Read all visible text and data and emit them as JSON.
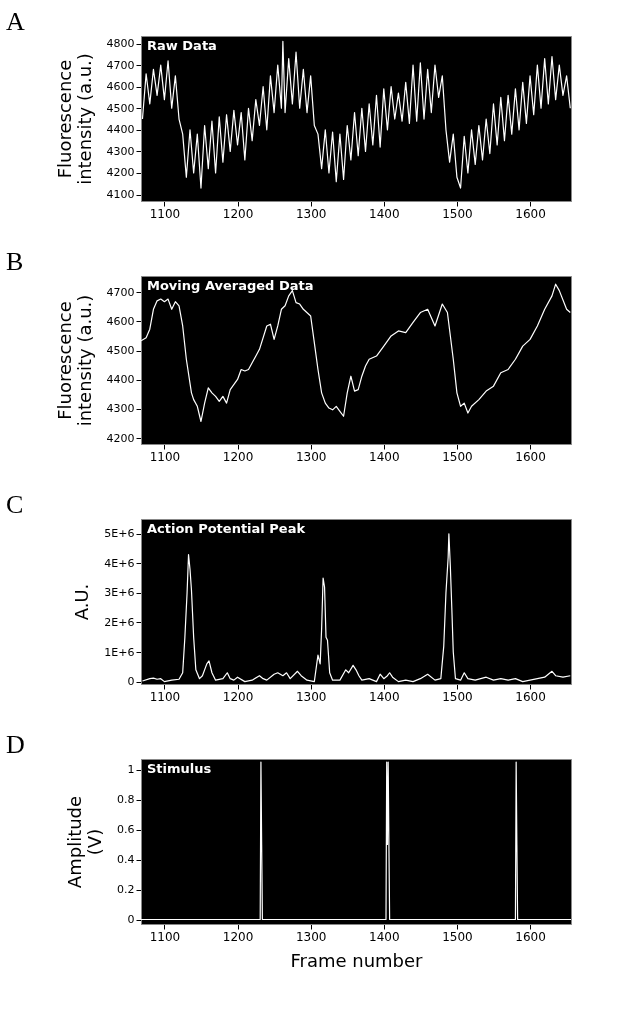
{
  "chart_data": [
    {
      "type": "line",
      "title": "Raw Data",
      "ylabel": "Fluorescence intensity (a.u.)",
      "annotations": [
        "A"
      ],
      "xlim": [
        1068,
        1656
      ],
      "xticks": [
        1100,
        1200,
        1300,
        1400,
        1500,
        1600
      ],
      "ylim": [
        4070,
        4835
      ],
      "yticks": [
        4100,
        4200,
        4300,
        4400,
        4500,
        4600,
        4700,
        4800
      ],
      "grid": false,
      "series": [
        {
          "color": "#ffffff",
          "x": [
            1070,
            1075,
            1080,
            1085,
            1090,
            1095,
            1100,
            1105,
            1110,
            1115,
            1120,
            1125,
            1130,
            1135,
            1140,
            1145,
            1150,
            1155,
            1160,
            1165,
            1170,
            1175,
            1180,
            1185,
            1190,
            1195,
            1200,
            1205,
            1210,
            1215,
            1220,
            1225,
            1230,
            1235,
            1240,
            1245,
            1250,
            1255,
            1260,
            1262,
            1265,
            1270,
            1275,
            1280,
            1285,
            1290,
            1295,
            1300,
            1305,
            1310,
            1315,
            1320,
            1325,
            1330,
            1335,
            1340,
            1345,
            1350,
            1355,
            1360,
            1365,
            1370,
            1375,
            1380,
            1385,
            1390,
            1395,
            1400,
            1405,
            1410,
            1415,
            1420,
            1425,
            1430,
            1435,
            1440,
            1445,
            1450,
            1455,
            1460,
            1465,
            1470,
            1475,
            1480,
            1485,
            1490,
            1495,
            1500,
            1505,
            1510,
            1515,
            1520,
            1525,
            1530,
            1535,
            1540,
            1545,
            1550,
            1555,
            1560,
            1565,
            1570,
            1575,
            1580,
            1585,
            1590,
            1595,
            1600,
            1605,
            1610,
            1615,
            1620,
            1625,
            1630,
            1635,
            1640,
            1645,
            1650,
            1655
          ],
          "values": [
            4450,
            4660,
            4520,
            4680,
            4560,
            4700,
            4540,
            4720,
            4500,
            4650,
            4450,
            4380,
            4180,
            4400,
            4200,
            4380,
            4130,
            4420,
            4220,
            4440,
            4200,
            4460,
            4250,
            4470,
            4300,
            4490,
            4330,
            4480,
            4260,
            4500,
            4350,
            4540,
            4420,
            4600,
            4400,
            4650,
            4480,
            4700,
            4500,
            4810,
            4480,
            4730,
            4520,
            4760,
            4500,
            4680,
            4480,
            4650,
            4420,
            4380,
            4220,
            4400,
            4200,
            4390,
            4160,
            4380,
            4170,
            4420,
            4260,
            4480,
            4280,
            4500,
            4300,
            4520,
            4330,
            4560,
            4320,
            4590,
            4400,
            4600,
            4450,
            4570,
            4440,
            4620,
            4430,
            4700,
            4440,
            4710,
            4450,
            4680,
            4480,
            4700,
            4550,
            4650,
            4400,
            4250,
            4380,
            4180,
            4130,
            4370,
            4200,
            4400,
            4240,
            4420,
            4260,
            4450,
            4290,
            4520,
            4330,
            4550,
            4350,
            4560,
            4380,
            4590,
            4400,
            4620,
            4430,
            4650,
            4470,
            4700,
            4500,
            4730,
            4520,
            4740,
            4540,
            4700,
            4560,
            4650,
            4500
          ]
        }
      ]
    },
    {
      "type": "line",
      "title": "Moving Averaged Data",
      "ylabel": "Fluorescence intensity (a.u.)",
      "annotations": [
        "B"
      ],
      "xlim": [
        1068,
        1656
      ],
      "xticks": [
        1100,
        1200,
        1300,
        1400,
        1500,
        1600
      ],
      "ylim": [
        4180,
        4755
      ],
      "yticks": [
        4200,
        4300,
        4400,
        4500,
        4600,
        4700
      ],
      "grid": false,
      "series": [
        {
          "color": "#ffffff",
          "x": [
            1068,
            1075,
            1080,
            1085,
            1090,
            1095,
            1100,
            1105,
            1110,
            1115,
            1120,
            1125,
            1130,
            1137,
            1140,
            1145,
            1150,
            1155,
            1160,
            1165,
            1170,
            1175,
            1180,
            1185,
            1190,
            1200,
            1205,
            1210,
            1215,
            1220,
            1230,
            1240,
            1245,
            1250,
            1255,
            1260,
            1265,
            1270,
            1275,
            1280,
            1285,
            1290,
            1300,
            1305,
            1310,
            1315,
            1320,
            1325,
            1330,
            1335,
            1340,
            1345,
            1350,
            1355,
            1360,
            1365,
            1370,
            1375,
            1380,
            1390,
            1400,
            1410,
            1420,
            1430,
            1440,
            1450,
            1460,
            1470,
            1480,
            1487,
            1495,
            1500,
            1505,
            1510,
            1515,
            1520,
            1530,
            1540,
            1550,
            1560,
            1570,
            1580,
            1590,
            1600,
            1610,
            1620,
            1630,
            1635,
            1640,
            1650,
            1655
          ],
          "values": [
            4533,
            4544,
            4573,
            4641,
            4670,
            4676,
            4667,
            4676,
            4641,
            4667,
            4653,
            4584,
            4470,
            4355,
            4332,
            4309,
            4257,
            4320,
            4372,
            4355,
            4343,
            4326,
            4343,
            4320,
            4366,
            4401,
            4435,
            4430,
            4435,
            4458,
            4504,
            4584,
            4590,
            4538,
            4584,
            4641,
            4653,
            4687,
            4705,
            4664,
            4659,
            4641,
            4618,
            4527,
            4435,
            4355,
            4320,
            4303,
            4297,
            4309,
            4292,
            4275,
            4355,
            4412,
            4361,
            4366,
            4412,
            4447,
            4470,
            4481,
            4515,
            4550,
            4567,
            4561,
            4596,
            4630,
            4641,
            4584,
            4659,
            4630,
            4470,
            4355,
            4309,
            4320,
            4286,
            4309,
            4332,
            4361,
            4378,
            4424,
            4435,
            4470,
            4515,
            4538,
            4584,
            4641,
            4687,
            4727,
            4705,
            4641,
            4630
          ]
        }
      ]
    },
    {
      "type": "line",
      "title": "Action Potential Peak",
      "ylabel": "A.U.",
      "annotations": [
        "C"
      ],
      "xlim": [
        1068,
        1656
      ],
      "xticks": [
        1100,
        1200,
        1300,
        1400,
        1500,
        1600
      ],
      "ylim": [
        -80000,
        5500000
      ],
      "yticks": [
        0,
        {
          "value": 1000000,
          "label": "1E+6"
        },
        {
          "value": 2000000,
          "label": "2E+6"
        },
        {
          "value": 3000000,
          "label": "3E+6"
        },
        {
          "value": 4000000,
          "label": "4E+6"
        },
        {
          "value": 5000000,
          "label": "5E+6"
        }
      ],
      "grid": false,
      "series": [
        {
          "color": "#ffffff",
          "x": [
            1070,
            1080,
            1085,
            1090,
            1095,
            1100,
            1110,
            1120,
            1125,
            1128,
            1131,
            1133,
            1135,
            1137,
            1140,
            1143,
            1148,
            1152,
            1158,
            1161,
            1165,
            1170,
            1180,
            1186,
            1190,
            1195,
            1200,
            1210,
            1220,
            1230,
            1235,
            1240,
            1250,
            1255,
            1262,
            1267,
            1272,
            1282,
            1287,
            1295,
            1305,
            1310,
            1313,
            1315,
            1317,
            1319,
            1321,
            1323,
            1326,
            1330,
            1340,
            1348,
            1352,
            1358,
            1362,
            1366,
            1370,
            1380,
            1390,
            1395,
            1400,
            1405,
            1408,
            1412,
            1420,
            1430,
            1440,
            1450,
            1460,
            1470,
            1478,
            1482,
            1485,
            1488,
            1489,
            1491,
            1493,
            1495,
            1498,
            1505,
            1510,
            1515,
            1525,
            1540,
            1550,
            1560,
            1570,
            1580,
            1590,
            1600,
            1610,
            1620,
            1630,
            1635,
            1645,
            1655
          ],
          "values": [
            20000,
            100000,
            120000,
            80000,
            100000,
            0,
            50000,
            80000,
            300000,
            1500000,
            3000000,
            4300000,
            3800000,
            3100000,
            1500000,
            400000,
            100000,
            200000,
            600000,
            700000,
            300000,
            50000,
            100000,
            300000,
            100000,
            50000,
            150000,
            0,
            50000,
            200000,
            100000,
            50000,
            250000,
            300000,
            200000,
            300000,
            100000,
            350000,
            200000,
            50000,
            0,
            900000,
            600000,
            1800000,
            3500000,
            3200000,
            1500000,
            1400000,
            300000,
            50000,
            50000,
            400000,
            300000,
            550000,
            400000,
            200000,
            50000,
            100000,
            0,
            250000,
            100000,
            200000,
            300000,
            150000,
            0,
            50000,
            0,
            100000,
            250000,
            50000,
            100000,
            1200000,
            3000000,
            4200000,
            5000000,
            3900000,
            2500000,
            1000000,
            100000,
            50000,
            300000,
            100000,
            50000,
            150000,
            50000,
            100000,
            50000,
            100000,
            0,
            50000,
            100000,
            150000,
            350000,
            200000,
            150000,
            200000
          ]
        }
      ]
    },
    {
      "type": "line",
      "title": "Stimulus",
      "xlabel": "Frame number",
      "ylabel": "Amplitude (V)",
      "annotations": [
        "D"
      ],
      "xlim": [
        1068,
        1656
      ],
      "xticks": [
        1100,
        1200,
        1300,
        1400,
        1500,
        1600
      ],
      "ylim": [
        -0.03,
        1.07
      ],
      "yticks": [
        0,
        0.2,
        0.4,
        0.6,
        0.8,
        1
      ],
      "grid": false,
      "series": [
        {
          "color": "#ffffff",
          "x": [
            1068,
            1231,
            1232,
            1233,
            1234,
            1403,
            1404,
            1405,
            1406,
            1407,
            1408,
            1580,
            1581,
            1582,
            1583,
            1656
          ],
          "values": [
            0,
            0,
            1.05,
            0.5,
            0,
            0,
            1.05,
            0.5,
            1.05,
            0.5,
            0,
            0,
            1.05,
            0.5,
            0,
            0
          ]
        }
      ]
    }
  ]
}
